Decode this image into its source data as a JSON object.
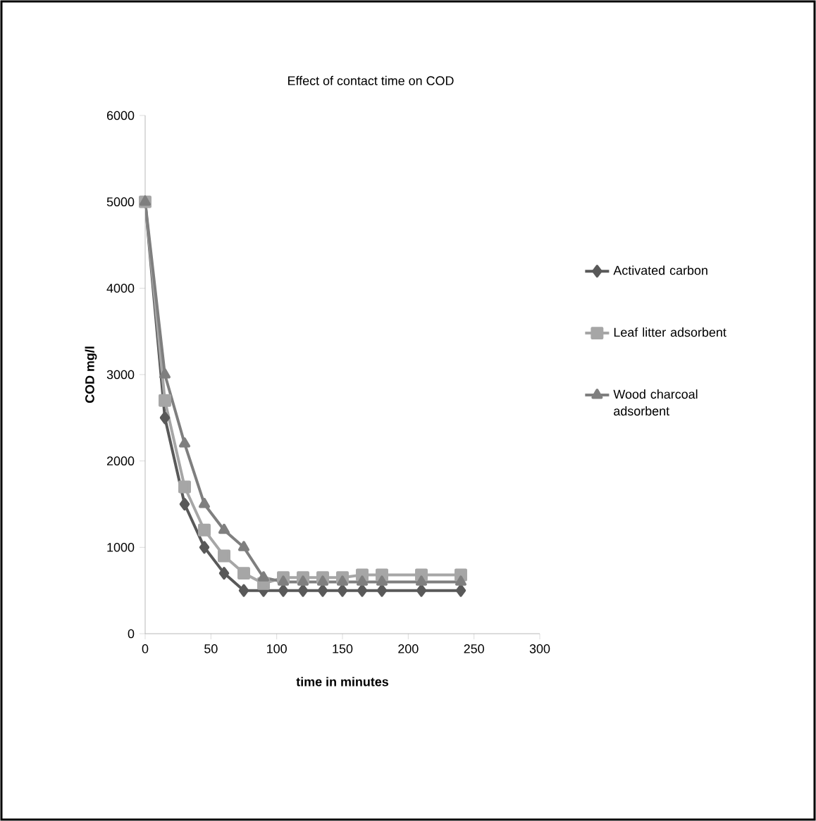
{
  "chart_data": {
    "type": "line",
    "title": "Effect of contact  time on COD",
    "xlabel": "time in minutes",
    "ylabel": "COD mg/l",
    "x": [
      0,
      15,
      30,
      45,
      60,
      75,
      90,
      105,
      120,
      135,
      150,
      165,
      180,
      210,
      240
    ],
    "series": [
      {
        "name": "Activated carbon",
        "color": "#595959",
        "marker": "diamond",
        "values": [
          5000,
          2500,
          1500,
          1000,
          700,
          500,
          500,
          500,
          500,
          500,
          500,
          500,
          500,
          500,
          500
        ]
      },
      {
        "name": "Leaf litter adsorbent",
        "color": "#a6a6a6",
        "marker": "square",
        "values": [
          5000,
          2700,
          1700,
          1200,
          900,
          700,
          580,
          650,
          650,
          650,
          650,
          680,
          680,
          680,
          680
        ]
      },
      {
        "name": "Wood charcoal adsorbent",
        "color": "#7f7f7f",
        "marker": "triangle",
        "values": [
          5000,
          3000,
          2200,
          1500,
          1200,
          1000,
          650,
          600,
          600,
          600,
          600,
          600,
          600,
          600,
          600
        ]
      }
    ],
    "xlim": [
      0,
      300
    ],
    "xticks": [
      0,
      50,
      100,
      150,
      200,
      250,
      300
    ],
    "ylim": [
      0,
      6000
    ],
    "yticks": [
      0,
      1000,
      2000,
      3000,
      4000,
      5000,
      6000
    ],
    "grid": false,
    "legend": "right",
    "line_style": "solid"
  }
}
